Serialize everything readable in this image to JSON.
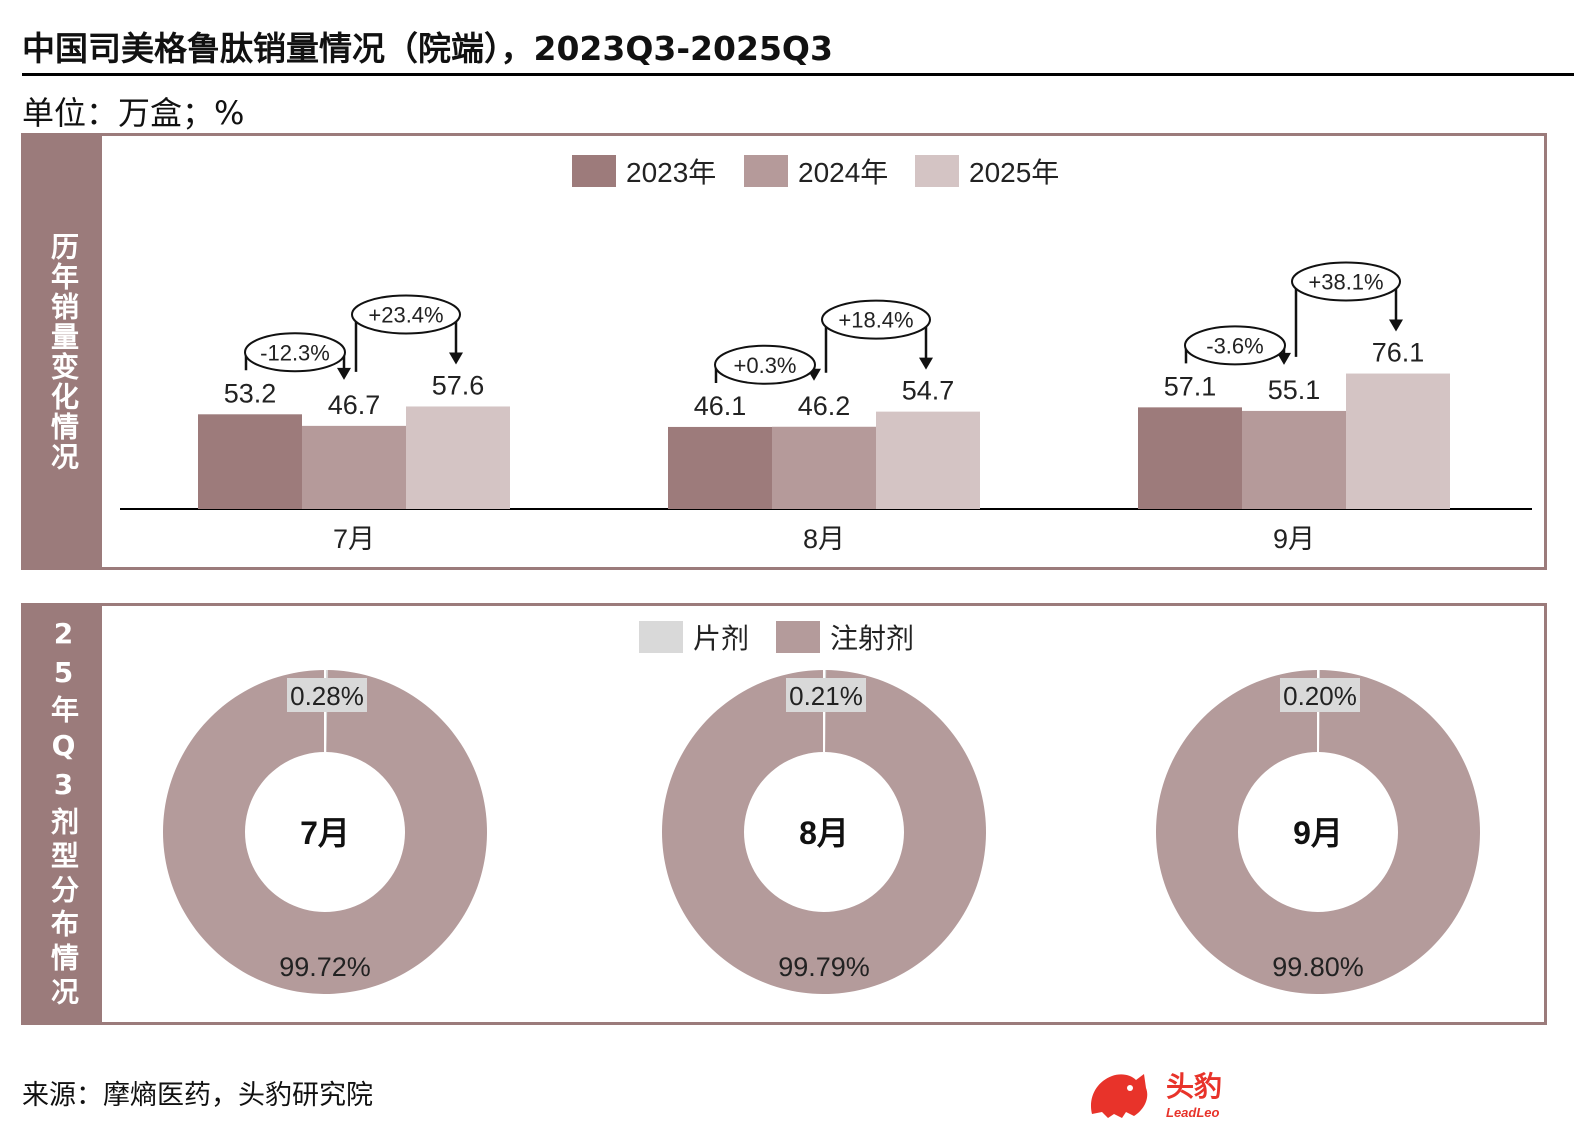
{
  "title": "中国司美格鲁肽销量情况（院端），2023Q3-2025Q3",
  "unit": "单位：万盒；%",
  "source": "来源：摩熵医药，头豹研究院",
  "logo": {
    "name": "头豹",
    "sub": "LeadLeo"
  },
  "colors": {
    "y2023": "#9d7b7b",
    "y2024": "#b59a9a",
    "y2025": "#d4c4c4",
    "tablet": "#d9d9d9",
    "injection": "#b49b9b",
    "panel": "#9b7b7b"
  },
  "chart_data": [
    {
      "type": "bar",
      "side_label": "历年销量变化情况",
      "categories": [
        "7月",
        "8月",
        "9月"
      ],
      "series": [
        {
          "name": "2023年",
          "values": [
            53.2,
            46.1,
            57.1
          ]
        },
        {
          "name": "2024年",
          "values": [
            46.7,
            46.2,
            55.1
          ]
        },
        {
          "name": "2025年",
          "values": [
            57.6,
            54.7,
            76.1
          ]
        }
      ],
      "value_labels": [
        [
          "53.2",
          "46.7",
          "57.6"
        ],
        [
          "46.1",
          "46.2",
          "54.7"
        ],
        [
          "57.1",
          "55.1",
          "76.1"
        ]
      ],
      "growth_labels": [
        {
          "yoy_2024": "-12.3%",
          "yoy_2025": "+23.4%"
        },
        {
          "yoy_2024": "+0.3%",
          "yoy_2025": "+18.4%"
        },
        {
          "yoy_2024": "-3.6%",
          "yoy_2025": "+38.1%"
        }
      ],
      "legend_position": "top"
    },
    {
      "type": "pie",
      "side_label": "25年Q3剂型分布情况",
      "legend": [
        "片剂",
        "注射剂"
      ],
      "charts": [
        {
          "center": "7月",
          "slices": [
            {
              "name": "片剂",
              "value": 0.28,
              "label": "0.28%"
            },
            {
              "name": "注射剂",
              "value": 99.72,
              "label": "99.72%"
            }
          ]
        },
        {
          "center": "8月",
          "slices": [
            {
              "name": "片剂",
              "value": 0.21,
              "label": "0.21%"
            },
            {
              "name": "注射剂",
              "value": 99.79,
              "label": "99.79%"
            }
          ]
        },
        {
          "center": "9月",
          "slices": [
            {
              "name": "片剂",
              "value": 0.2,
              "label": "0.20%"
            },
            {
              "name": "注射剂",
              "value": 99.8,
              "label": "99.80%"
            }
          ]
        }
      ],
      "legend_position": "top"
    }
  ]
}
